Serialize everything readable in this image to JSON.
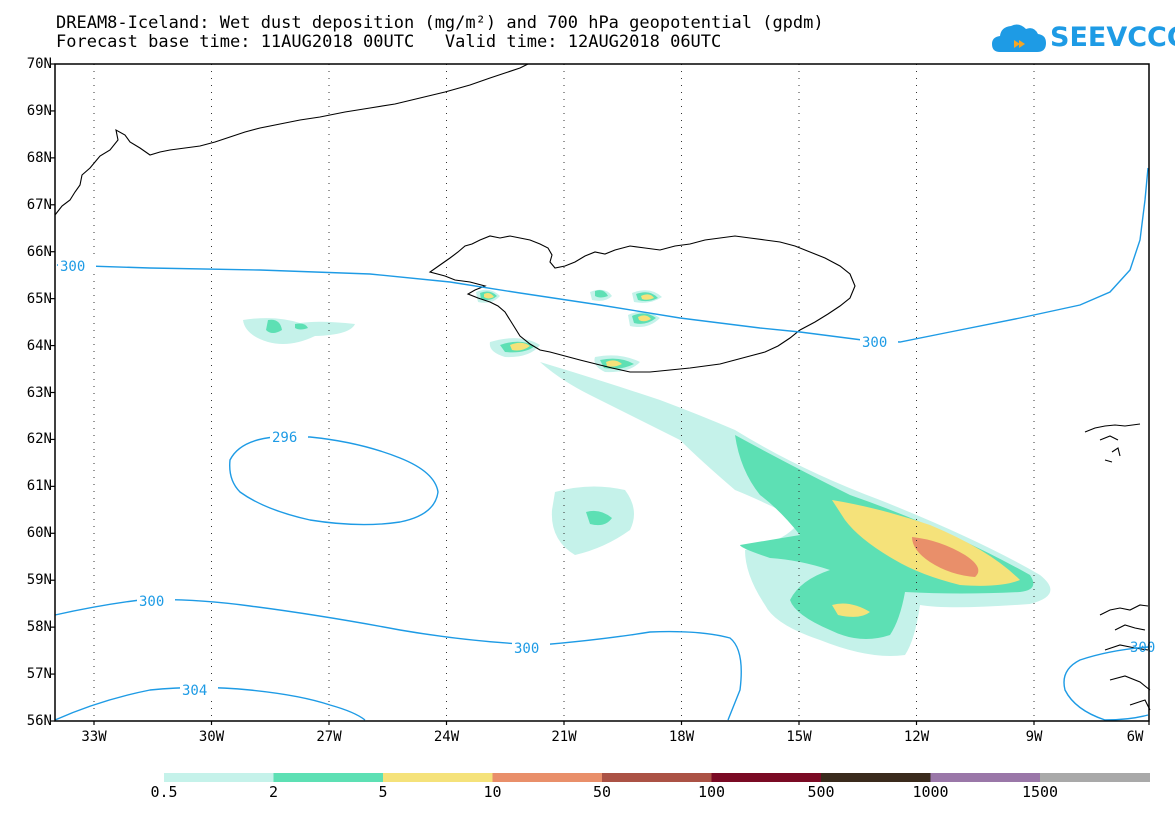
{
  "title": {
    "line1": "DREAM8-Iceland: Wet dust deposition (mg/m²) and 700 hPa geopotential (gpdm)",
    "line2": "Forecast base time: 11AUG2018 00UTC   Valid time: 12AUG2018 06UTC"
  },
  "logo": {
    "text": "SEEVCCC",
    "icon": "cloud-logo-icon"
  },
  "map": {
    "lat_labels": [
      "70N",
      "69N",
      "68N",
      "67N",
      "66N",
      "65N",
      "64N",
      "63N",
      "62N",
      "61N",
      "60N",
      "59N",
      "58N",
      "57N",
      "56N"
    ],
    "lon_labels": [
      "33W",
      "30W",
      "27W",
      "24W",
      "21W",
      "18W",
      "15W",
      "12W",
      "9W",
      "6W"
    ],
    "contour_labels": [
      "300",
      "300",
      "296",
      "300",
      "300",
      "304",
      "300"
    ]
  },
  "legend": {
    "labels": [
      "0.5",
      "2",
      "5",
      "10",
      "50",
      "100",
      "500",
      "1000",
      "1500"
    ],
    "colors": [
      "#c5f2ea",
      "#5de0b4",
      "#f5e27a",
      "#e98f6a",
      "#ab5245",
      "#7a0a24",
      "#3a2a1c",
      "#9a77a8",
      "#a9a9a9"
    ]
  },
  "colors": {
    "contour": "#1e9be5",
    "coast": "#000000"
  }
}
